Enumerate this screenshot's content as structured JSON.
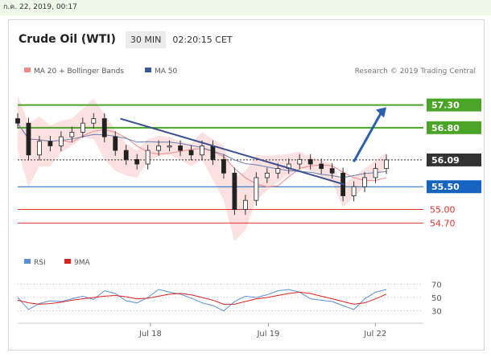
{
  "date_bar": "ก.ค. 22, 2019, 00:17",
  "header": {
    "title": "Crude Oil (WTI)",
    "timeframe": "30 MIN",
    "time": "02:20:15 CET"
  },
  "legend": {
    "items": [
      {
        "label": "MA 20 + Bollinger Bands",
        "color": "#f08a8a"
      },
      {
        "label": "MA 50",
        "color": "#3b5998"
      }
    ],
    "credit": "Research © 2019 Trading Central"
  },
  "rsi_legend": {
    "items": [
      {
        "label": "RSI",
        "color": "#5b8fd8"
      },
      {
        "label": "9MA",
        "color": "#e02020"
      }
    ]
  },
  "chart_data": [
    {
      "type": "candlestick",
      "x_labels": [
        "Jul 18",
        "Jul 19",
        "Jul 22"
      ],
      "y_range": [
        54.3,
        57.7
      ],
      "levels": [
        {
          "value": 57.3,
          "label": "57.30",
          "kind": "resistance",
          "color": "#4aa526"
        },
        {
          "value": 56.8,
          "label": "56.80",
          "kind": "resistance",
          "color": "#4aa526"
        },
        {
          "value": 56.09,
          "label": "56.09",
          "kind": "last-price",
          "color": "#333333"
        },
        {
          "value": 55.5,
          "label": "55.50",
          "kind": "pivot",
          "color": "#1565c0"
        },
        {
          "value": 55.0,
          "label": "55.00",
          "kind": "support",
          "color": "#e23030"
        },
        {
          "value": 54.7,
          "label": "54.70",
          "kind": "support",
          "color": "#e23030"
        }
      ],
      "close_path": [
        56.9,
        56.2,
        56.5,
        56.4,
        56.6,
        56.7,
        56.9,
        57.0,
        56.6,
        56.3,
        56.1,
        56.0,
        56.3,
        56.4,
        56.4,
        56.3,
        56.2,
        56.4,
        56.1,
        55.8,
        55.0,
        55.2,
        55.7,
        55.8,
        55.9,
        56.0,
        56.1,
        56.0,
        55.9,
        55.8,
        55.3,
        55.5,
        55.7,
        55.9,
        56.09
      ],
      "trendline": [
        [
          0.22,
          57.0
        ],
        [
          0.7,
          55.55
        ]
      ],
      "arrow": [
        [
          0.72,
          56.05
        ],
        [
          0.79,
          57.25
        ]
      ]
    },
    {
      "type": "line",
      "name": "RSI panel",
      "y_ticks": [
        30,
        50,
        70
      ],
      "series": [
        {
          "name": "RSI",
          "values": [
            50,
            32,
            41,
            45,
            44,
            48,
            52,
            47,
            60,
            56,
            45,
            42,
            50,
            62,
            58,
            55,
            49,
            42,
            38,
            30,
            44,
            52,
            50,
            54,
            60,
            62,
            58,
            48,
            46,
            44,
            38,
            32,
            48,
            58,
            62
          ]
        },
        {
          "name": "9MA",
          "values": [
            46,
            42,
            40,
            41,
            43,
            46,
            48,
            50,
            52,
            53,
            51,
            48,
            49,
            52,
            55,
            56,
            54,
            50,
            46,
            40,
            40,
            44,
            48,
            50,
            53,
            56,
            58,
            56,
            52,
            48,
            44,
            40,
            42,
            48,
            55
          ]
        }
      ]
    }
  ]
}
